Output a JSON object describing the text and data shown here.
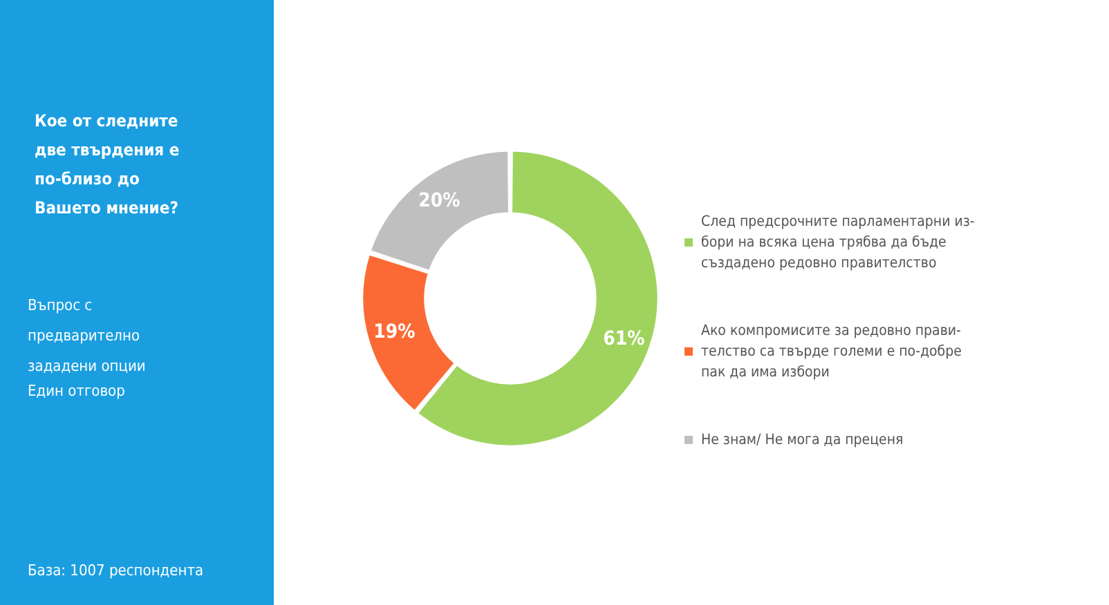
{
  "chart_data": {
    "type": "donut",
    "title": "Кое от следните две твърдения е по-близо до Вашето мнение?",
    "categories": [
      "След предсрочните парламентарни из-\nбори на всяка цена трябва да бъде\nсъздадено редовно правителство",
      "Ако компромисите за редовно прави-\nтелство са твърде големи е по-добре\nпак да има избори",
      "Не знам/ Не мога да преценя"
    ],
    "values": [
      61,
      19,
      20
    ],
    "colors": [
      "#9fd35e",
      "#fb6a35",
      "#bfbfbf"
    ],
    "value_labels": [
      "61%",
      "19%",
      "20%"
    ],
    "legend": "right",
    "annotations": [
      "Въпрос с предварително зададени опции",
      "Един отговор",
      "База: 1007 респондента"
    ]
  }
}
